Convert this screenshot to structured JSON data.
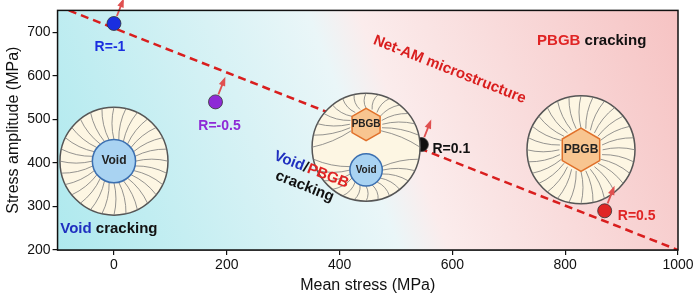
{
  "chart_data": {
    "type": "scatter",
    "x_label": "Mean stress (MPa)",
    "y_label": "Stress amplitude (MPa)",
    "xlim": [
      -100,
      1000
    ],
    "xticks": [
      0,
      200,
      400,
      600,
      800,
      1000
    ],
    "ylim": [
      200,
      750
    ],
    "yticks": [
      200,
      300,
      400,
      500,
      600,
      700
    ],
    "grid": false,
    "marker": "circle",
    "series": [
      {
        "name": "R=-1",
        "color": "#1a2ee0",
        "x": [
          0
        ],
        "values": [
          720
        ]
      },
      {
        "name": "R=-0.5",
        "color": "#8e2ad6",
        "x": [
          180
        ],
        "values": [
          540
        ]
      },
      {
        "name": "R=0.1",
        "color": "#111111",
        "x": [
          545
        ],
        "values": [
          442
        ]
      },
      {
        "name": "R=0.5",
        "color": "#e02424",
        "x": [
          870
        ],
        "values": [
          290
        ]
      }
    ],
    "boundary": {
      "color": "#d91e1e",
      "line_style": "dashed",
      "x": [
        -80,
        1000
      ],
      "values": [
        750,
        200
      ]
    },
    "annotations": [
      {
        "x": 595,
        "y": 614,
        "lines": [
          [
            {
              "text": "Net-AM microstructure",
              "color": "#d91e1e"
            }
          ]
        ]
      },
      {
        "x": 847,
        "y": 679,
        "lines": [
          [
            {
              "text": "PBGB",
              "color": "#e02424"
            },
            {
              "text": " cracking",
              "color": "#111111"
            }
          ]
        ]
      },
      {
        "x": 344,
        "y": 365,
        "lines": [
          [
            {
              "text": "Void",
              "color": "#1f2fbf"
            },
            {
              "text": "/",
              "color": "#111111"
            },
            {
              "text": "PBGB",
              "color": "#e02424"
            }
          ],
          [
            {
              "text": "cracking",
              "color": "#111111"
            }
          ]
        ]
      },
      {
        "x": -9,
        "y": 249,
        "lines": [
          [
            {
              "text": "Void",
              "color": "#1f2fbf"
            },
            {
              "text": " cracking",
              "color": "#111111"
            }
          ]
        ]
      }
    ],
    "diagrams": [
      {
        "x": 0,
        "y": 404,
        "features": [
          {
            "shape": "circle",
            "label": "Void"
          }
        ]
      },
      {
        "x": 447,
        "y": 436,
        "features": [
          {
            "shape": "hexagon",
            "label": "PBGB"
          },
          {
            "shape": "circle",
            "label": "Void"
          }
        ]
      },
      {
        "x": 828,
        "y": 430,
        "features": [
          {
            "shape": "hexagon",
            "label": "PBGB"
          }
        ]
      }
    ]
  }
}
